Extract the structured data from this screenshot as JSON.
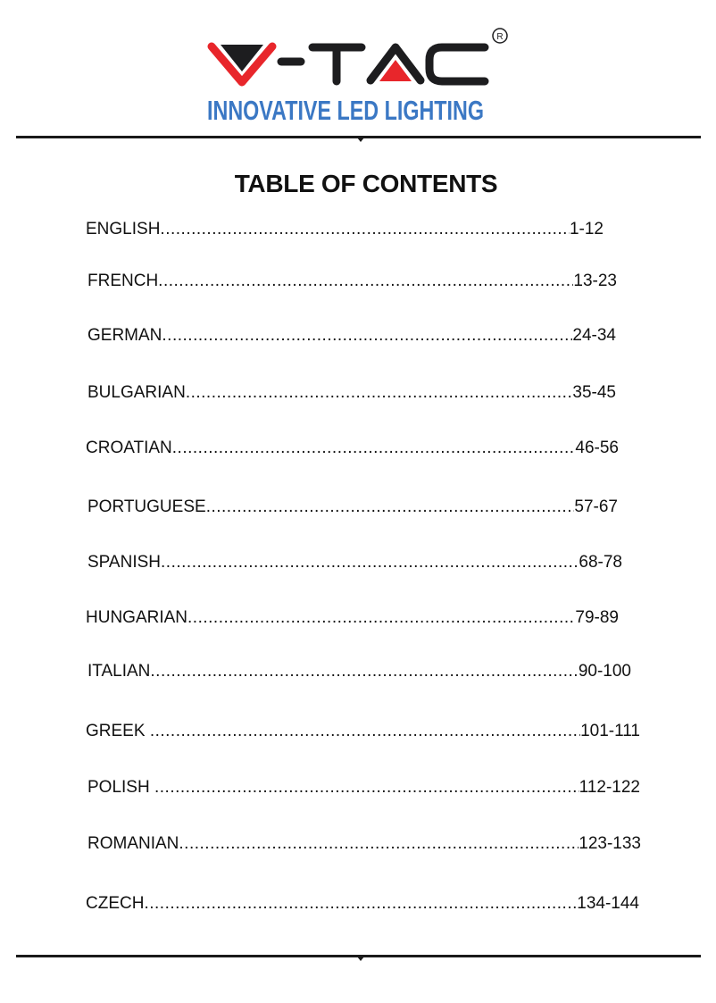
{
  "logo": {
    "brand": "V-TAC",
    "registered": "®",
    "tagline": "INNOVATIVE LED LIGHTING",
    "colors": {
      "red": "#e8262b",
      "black": "#1d1d1f",
      "blue": "#3b78c4"
    }
  },
  "title": "TABLE OF CONTENTS",
  "entries": [
    {
      "language": "ENGLISH",
      "pages": "1-12"
    },
    {
      "language": "FRENCH",
      "pages": "13-23"
    },
    {
      "language": "GERMAN",
      "pages": "24-34"
    },
    {
      "language": "BULGARIAN",
      "pages": "35-45"
    },
    {
      "language": "CROATIAN",
      "pages": "46-56"
    },
    {
      "language": "PORTUGUESE",
      "pages": "57-67"
    },
    {
      "language": "SPANISH",
      "pages": "68-78"
    },
    {
      "language": "HUNGARIAN",
      "pages": "79-89"
    },
    {
      "language": "ITALIAN",
      "pages": "90-100"
    },
    {
      "language": "GREEK ",
      "pages": "101-111"
    },
    {
      "language": "POLISH ",
      "pages": "112-122"
    },
    {
      "language": "ROMANIAN",
      "pages": "123-133"
    },
    {
      "language": "CZECH",
      "pages": "134-144"
    }
  ]
}
